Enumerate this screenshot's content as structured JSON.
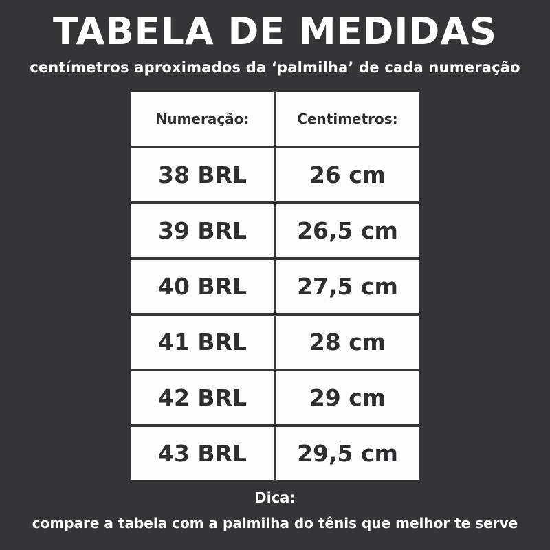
{
  "title": "TABELA DE MEDIDAS",
  "subtitle": "centímetros aproximados da ‘palmilha’ de cada numeração",
  "table": {
    "headers": [
      "Numeração:",
      "Centimetros:"
    ],
    "rows": [
      [
        "38 BRL",
        "26 cm"
      ],
      [
        "39 BRL",
        "26,5 cm"
      ],
      [
        "40 BRL",
        "27,5 cm"
      ],
      [
        "41 BRL",
        "28 cm"
      ],
      [
        "42 BRL",
        "29 cm"
      ],
      [
        "43 BRL",
        "29,5 cm"
      ]
    ]
  },
  "tip_label": "Dica:",
  "tip_text": "compare a tabela com a palmilha do tênis que melhor te serve"
}
